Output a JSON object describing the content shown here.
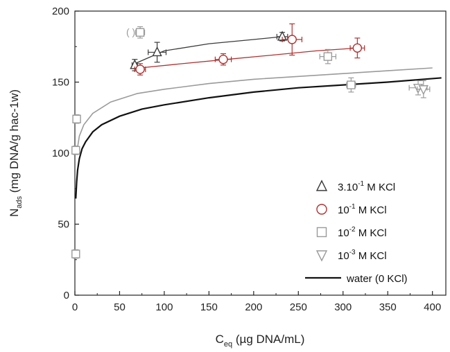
{
  "chart_data": {
    "type": "scatter",
    "xlabel": {
      "main": "C",
      "sub": "eq",
      "rest": " (µg DNA/mL)"
    },
    "ylabel": {
      "main": "N",
      "sub": "ads",
      "rest": " (mg DNA/g hac-1w)"
    },
    "xlim": [
      0,
      415
    ],
    "ylim": [
      0,
      200
    ],
    "xticks": [
      "0",
      "50",
      "100",
      "150",
      "200",
      "250",
      "300",
      "350",
      "400"
    ],
    "yticks": [
      "0",
      "50",
      "100",
      "150",
      "200"
    ],
    "annotation": "(   )",
    "legend_position": "bottom-right",
    "series": [
      {
        "name": {
          "base": "3.10",
          "sup": "-1",
          "rest": " M KCl"
        },
        "marker": "triangle-up",
        "color": "#3a3a3a",
        "points": [
          {
            "x": 67,
            "y": 162,
            "xerr": 3,
            "yerr": 4
          },
          {
            "x": 92,
            "y": 171,
            "xerr": 10,
            "yerr": 7
          },
          {
            "x": 232,
            "y": 182,
            "xerr": 6,
            "yerr": 3
          }
        ],
        "fit": [
          [
            67,
            163
          ],
          [
            100,
            172
          ],
          [
            150,
            177
          ],
          [
            200,
            180
          ],
          [
            232,
            182
          ]
        ]
      },
      {
        "name": {
          "base": "10",
          "sup": "-1",
          "rest": " M KCl"
        },
        "marker": "circle",
        "color": "#b03030",
        "points": [
          {
            "x": 73,
            "y": 159,
            "xerr": 6,
            "yerr": 4
          },
          {
            "x": 166,
            "y": 166,
            "xerr": 9,
            "yerr": 4
          },
          {
            "x": 243,
            "y": 180,
            "xerr": 11,
            "yerr": 11
          },
          {
            "x": 316,
            "y": 174,
            "xerr": 8,
            "yerr": 7
          }
        ],
        "fit": [
          [
            73,
            160
          ],
          [
            120,
            163
          ],
          [
            170,
            166
          ],
          [
            220,
            169
          ],
          [
            270,
            172
          ],
          [
            316,
            174
          ]
        ]
      },
      {
        "name": {
          "base": "10",
          "sup": "-2",
          "rest": " M KCl"
        },
        "marker": "square",
        "color": "#9a9a9a",
        "points": [
          {
            "x": 73,
            "y": 185,
            "xerr": 5,
            "yerr": 4
          },
          {
            "x": 283,
            "y": 168,
            "xerr": 9,
            "yerr": 5
          },
          {
            "x": 309,
            "y": 148,
            "xerr": 5,
            "yerr": 5
          },
          {
            "x": 2,
            "y": 124,
            "xerr": 2,
            "yerr": 3
          },
          {
            "x": 1,
            "y": 102,
            "xerr": 2,
            "yerr": 3
          },
          {
            "x": 1,
            "y": 29,
            "xerr": 2,
            "yerr": 3
          }
        ],
        "fit": [
          [
            2,
            100
          ],
          [
            5,
            112
          ],
          [
            10,
            120
          ],
          [
            20,
            128
          ],
          [
            40,
            136
          ],
          [
            70,
            142
          ],
          [
            100,
            145
          ],
          [
            150,
            149
          ],
          [
            200,
            152
          ],
          [
            250,
            154
          ],
          [
            300,
            156
          ],
          [
            350,
            158
          ],
          [
            400,
            160
          ]
        ]
      },
      {
        "name": {
          "base": "10",
          "sup": "-3",
          "rest": " M KCl"
        },
        "marker": "triangle-down",
        "color": "#9a9a9a",
        "points": [
          {
            "x": 384,
            "y": 146,
            "xerr": 10,
            "yerr": 5
          },
          {
            "x": 390,
            "y": 145,
            "xerr": 7,
            "yerr": 6
          }
        ],
        "fit": []
      },
      {
        "name": {
          "base": "water (0 KCl)",
          "sup": "",
          "rest": ""
        },
        "marker": "line",
        "color": "#111111",
        "points": [],
        "fit": [
          [
            1,
            68
          ],
          [
            2,
            80
          ],
          [
            3,
            88
          ],
          [
            5,
            96
          ],
          [
            8,
            103
          ],
          [
            12,
            108
          ],
          [
            20,
            115
          ],
          [
            30,
            120
          ],
          [
            50,
            126
          ],
          [
            75,
            131
          ],
          [
            100,
            134
          ],
          [
            150,
            139
          ],
          [
            200,
            143
          ],
          [
            250,
            146
          ],
          [
            300,
            148
          ],
          [
            350,
            150
          ],
          [
            410,
            153
          ]
        ]
      }
    ]
  }
}
